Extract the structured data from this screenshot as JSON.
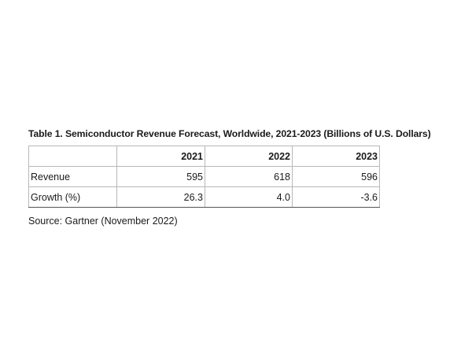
{
  "title": "Table 1. Semiconductor Revenue Forecast, Worldwide, 2021-2023 (Billions of U.S. Dollars)",
  "source": "Source: Gartner (November 2022)",
  "chart_data": {
    "type": "table",
    "title": "Table 1. Semiconductor Revenue Forecast, Worldwide, 2021-2023 (Billions of U.S. Dollars)",
    "columns": [
      "",
      "2021",
      "2022",
      "2023"
    ],
    "rows": [
      {
        "label": "Revenue",
        "values": [
          "595",
          "618",
          "596"
        ]
      },
      {
        "label": "Growth (%)",
        "values": [
          "26.3",
          "4.0",
          "-3.6"
        ]
      }
    ],
    "source": "Source: Gartner (November 2022)"
  }
}
